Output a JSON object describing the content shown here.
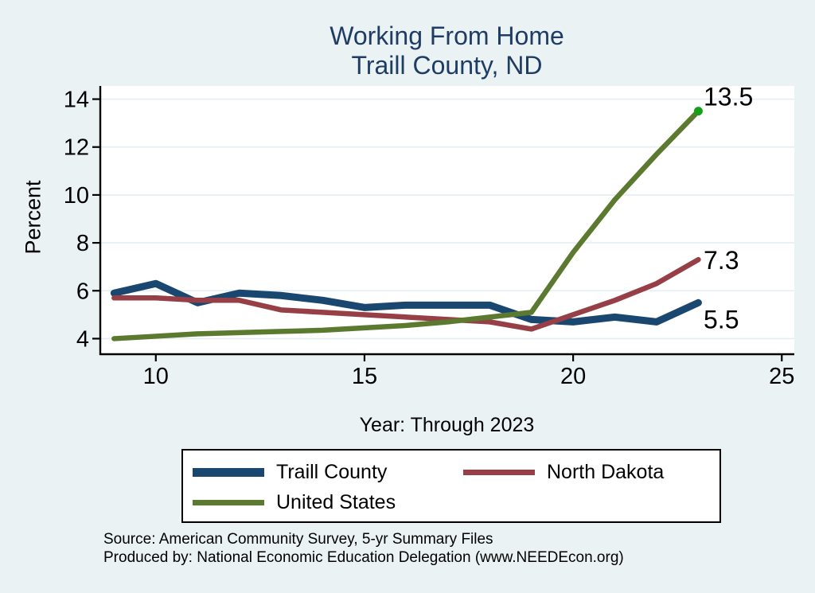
{
  "title": {
    "line1": "Working From Home",
    "line2": "Traill County, ND"
  },
  "colors": {
    "background": "#eaf2f3",
    "plot_background": "#ffffff",
    "gridline": "#e4eef3",
    "axis": "#000000",
    "title_text": "#1e3c64",
    "traill_county": "#1a476f",
    "north_dakota": "#963f46",
    "united_states": "#5b7a2f",
    "us_end_dot": "#16a01a"
  },
  "legend": {
    "items": [
      {
        "label": "Traill County",
        "color": "#1a476f"
      },
      {
        "label": "North Dakota",
        "color": "#963f46"
      },
      {
        "label": "United States",
        "color": "#5b7a2f"
      }
    ]
  },
  "footer": {
    "line1": "Source: American Community Survey, 5-yr Summary Files",
    "line2": "Produced by: National Economic Education Delegation (www.NEEDEcon.org)"
  },
  "chart_data": {
    "type": "line",
    "title": "Working From Home — Traill County, ND",
    "xlabel": "Year: Through 2023",
    "ylabel": "Percent",
    "x": [
      9,
      10,
      11,
      12,
      13,
      14,
      15,
      16,
      17,
      18,
      19,
      20,
      21,
      22,
      23
    ],
    "x_ticks": [
      10,
      15,
      20,
      25
    ],
    "y_ticks": [
      4,
      6,
      8,
      10,
      12,
      14
    ],
    "xlim": [
      8.65,
      25.3
    ],
    "ylim": [
      3.35,
      14.55
    ],
    "grid": true,
    "legend_position": "bottom",
    "series": [
      {
        "name": "Traill County",
        "color": "#1a476f",
        "line_width": 9,
        "values": [
          5.9,
          6.3,
          5.5,
          5.9,
          5.8,
          5.6,
          5.3,
          5.4,
          5.4,
          5.4,
          4.8,
          4.7,
          4.9,
          4.7,
          5.5
        ],
        "end_label": "5.5"
      },
      {
        "name": "North Dakota",
        "color": "#963f46",
        "line_width": 6.5,
        "values": [
          5.7,
          5.7,
          5.6,
          5.6,
          5.2,
          5.1,
          5.0,
          4.9,
          4.8,
          4.7,
          4.4,
          5.0,
          5.6,
          6.3,
          7.3
        ],
        "end_label": "7.3"
      },
      {
        "name": "United States",
        "color": "#5b7a2f",
        "line_width": 6.5,
        "values": [
          4.0,
          4.1,
          4.2,
          4.25,
          4.3,
          4.35,
          4.45,
          4.55,
          4.7,
          4.9,
          5.1,
          7.6,
          9.8,
          11.7,
          13.5
        ],
        "end_label": "13.5",
        "end_dot_color": "#16a01a"
      }
    ]
  }
}
